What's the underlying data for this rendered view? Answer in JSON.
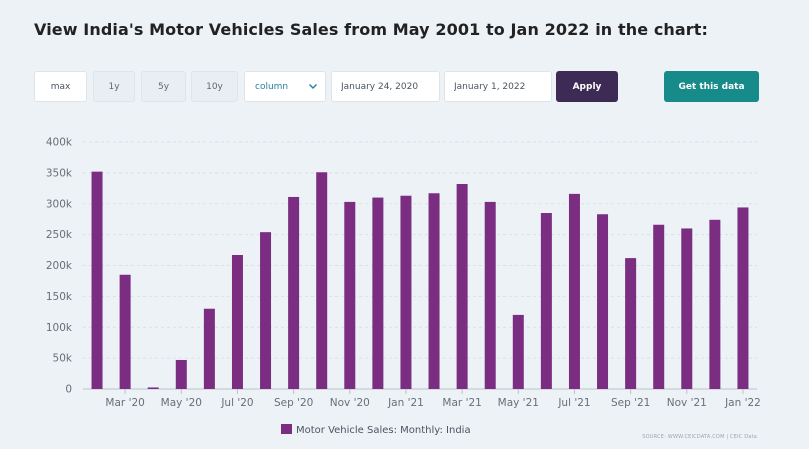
{
  "header": {
    "title": "View India's Motor Vehicles Sales from May 2001 to Jan 2022 in the chart:"
  },
  "controls": {
    "ranges": [
      "max",
      "1y",
      "5y",
      "10y"
    ],
    "active_range": "max",
    "chart_type": "column",
    "start_date": "January 24, 2020",
    "end_date": "January 1, 2022",
    "apply_label": "Apply",
    "get_data_label": "Get this data"
  },
  "colors": {
    "bar": "#7b2d82",
    "apply": "#3d2b56",
    "get_data": "#178a8a"
  },
  "chart_data": {
    "type": "bar",
    "categories": [
      "Feb '20",
      "Mar '20",
      "Apr '20",
      "May '20",
      "Jun '20",
      "Jul '20",
      "Aug '20",
      "Sep '20",
      "Oct '20",
      "Nov '20",
      "Dec '20",
      "Jan '21",
      "Feb '21",
      "Mar '21",
      "Apr '21",
      "May '21",
      "Jun '21",
      "Jul '21",
      "Aug '21",
      "Sep '21",
      "Oct '21",
      "Nov '21",
      "Dec '21",
      "Jan '22"
    ],
    "tick_labels": [
      "Mar '20",
      "May '20",
      "Jul '20",
      "Sep '20",
      "Nov '20",
      "Jan '21",
      "Mar '21",
      "May '21",
      "Jul '21",
      "Sep '21",
      "Nov '21",
      "Jan '22"
    ],
    "series": [
      {
        "name": "Motor Vehicle Sales: Monthly: India",
        "values": [
          352000,
          185000,
          2500,
          47000,
          130000,
          217000,
          254000,
          311000,
          351000,
          303000,
          310000,
          313000,
          317000,
          332000,
          303000,
          120000,
          285000,
          316000,
          283000,
          212000,
          266000,
          260000,
          274000,
          294000
        ]
      }
    ],
    "ylim": [
      0,
      400000
    ],
    "y_ticks": [
      "0",
      "50k",
      "100k",
      "150k",
      "200k",
      "250k",
      "300k",
      "350k",
      "400k"
    ],
    "grid": true,
    "legend_position": "bottom-center",
    "source": "SOURCE: WWW.CEICDATA.COM | CEIC Data"
  }
}
